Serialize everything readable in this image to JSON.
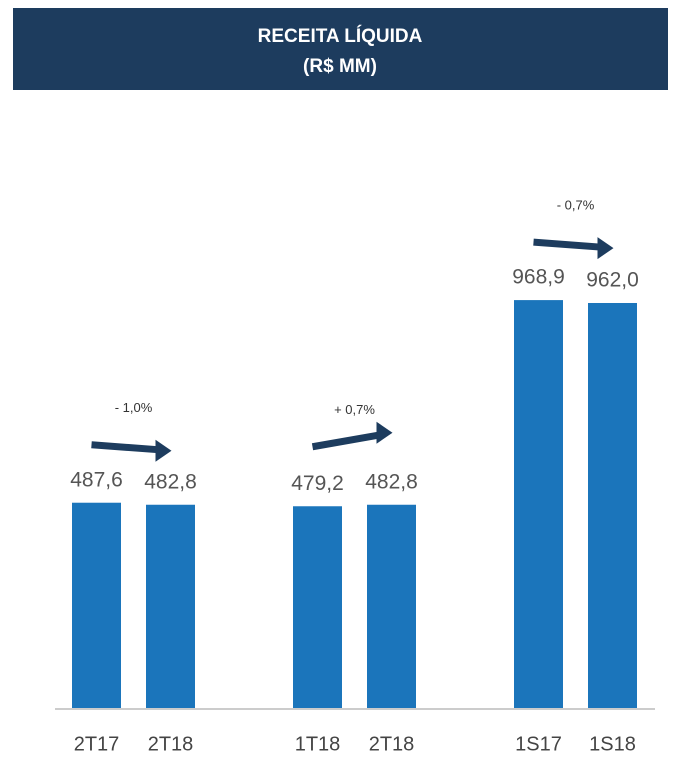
{
  "chart_data": {
    "type": "bar",
    "title": "RECEITA LÍQUIDA",
    "subtitle": "(R$ MM)",
    "categories": [
      "2T17",
      "2T18",
      "1T18",
      "2T18",
      "1S17",
      "1S18"
    ],
    "values": [
      487.6,
      482.8,
      479.2,
      482.8,
      968.9,
      962.0
    ],
    "value_labels": [
      "487,6",
      "482,8",
      "479,2",
      "482,8",
      "968,9",
      "962,0"
    ],
    "annotations": [
      "- 1,0%",
      "+ 0,7%",
      "- 0,7%"
    ],
    "color": "#1b75bb"
  }
}
